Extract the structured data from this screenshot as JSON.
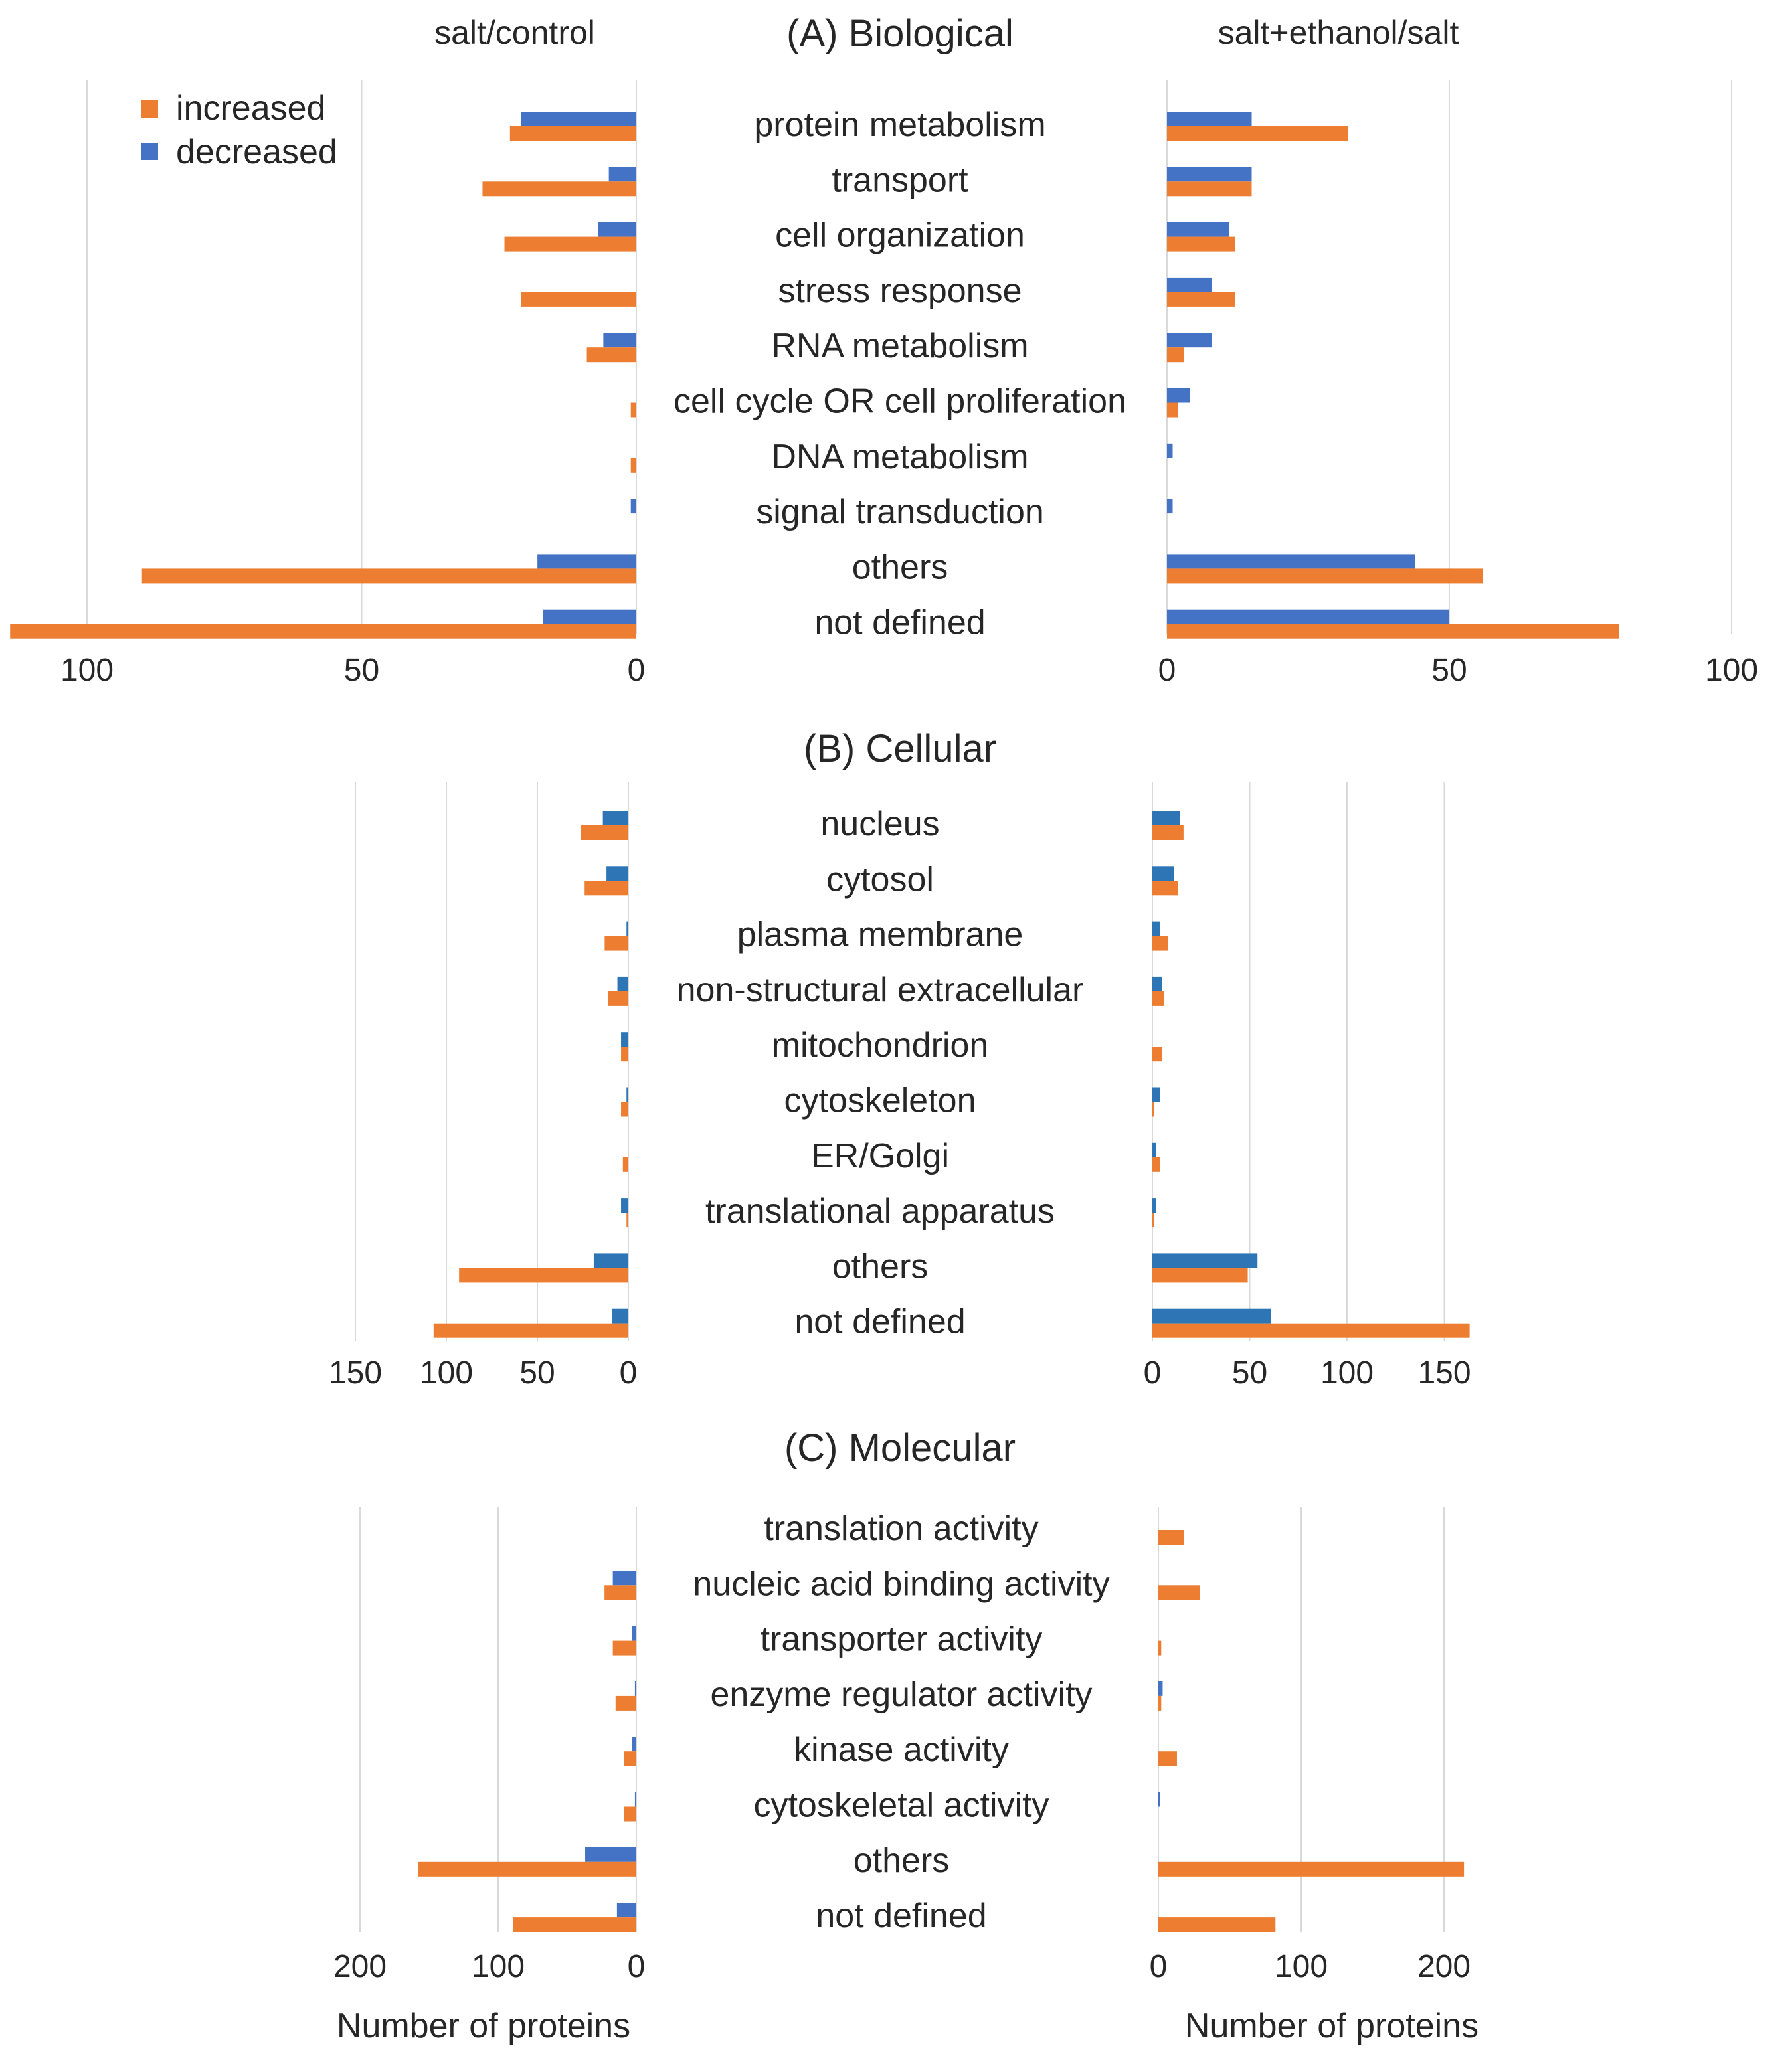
{
  "headers": {
    "left": "salt/control",
    "right": "salt+ethanol/salt"
  },
  "legend": {
    "increased": "increased",
    "decreased": "decreased"
  },
  "xlabel": "Number of proteins",
  "colors": {
    "increased": "#ED7D31",
    "decreased": "#4472C4",
    "decreased_cellular": "#2E75B6",
    "grid": "#D9D9D9",
    "text": "#262626"
  },
  "chart_data": [
    {
      "type": "bar",
      "title": "(A) Biological",
      "categories": [
        "protein metabolism",
        "transport",
        "cell organization",
        "stress response",
        "RNA metabolism",
        "cell cycle OR cell proliferation",
        "DNA metabolism",
        "signal transduction",
        "others",
        "not defined"
      ],
      "left": {
        "label": "salt/control",
        "xlim": [
          0,
          100
        ],
        "ticks": [
          "100",
          "50",
          "0"
        ],
        "series": [
          {
            "name": "increased",
            "values": [
              23,
              28,
              24,
              21,
              9,
              1,
              1,
              0,
              90,
              114
            ]
          },
          {
            "name": "decreased",
            "values": [
              21,
              5,
              7,
              0,
              6,
              0,
              0,
              1,
              18,
              17
            ]
          }
        ]
      },
      "right": {
        "label": "salt+ethanol/salt",
        "xlim": [
          0,
          100
        ],
        "ticks": [
          "0",
          "50",
          "100"
        ],
        "series": [
          {
            "name": "increased",
            "values": [
              32,
              15,
              12,
              12,
              3,
              2,
              0,
              0,
              56,
              80
            ]
          },
          {
            "name": "decreased",
            "values": [
              15,
              15,
              11,
              8,
              8,
              4,
              1,
              1,
              44,
              50
            ]
          }
        ]
      }
    },
    {
      "type": "bar",
      "title": "(B) Cellular",
      "categories": [
        "nucleus",
        "cytosol",
        "plasma membrane",
        "non-structural extracellular",
        "mitochondrion",
        "cytoskeleton",
        "ER/Golgi",
        "translational apparatus",
        "others",
        "not defined"
      ],
      "left": {
        "xlim": [
          0,
          150
        ],
        "ticks": [
          "150",
          "100",
          "50",
          "0"
        ],
        "series": [
          {
            "name": "increased",
            "values": [
              26,
              24,
              13,
              11,
              4,
              4,
              3,
              1,
              93,
              107
            ]
          },
          {
            "name": "decreased",
            "values": [
              14,
              12,
              1,
              6,
              4,
              1,
              0,
              4,
              19,
              9
            ]
          }
        ]
      },
      "right": {
        "xlim": [
          0,
          150
        ],
        "ticks": [
          "0",
          "50",
          "100",
          "150"
        ],
        "series": [
          {
            "name": "increased",
            "values": [
              16,
              13,
              8,
              6,
              5,
              1,
              4,
              1,
              49,
              163
            ]
          },
          {
            "name": "decreased",
            "values": [
              14,
              11,
              4,
              5,
              0,
              4,
              2,
              2,
              54,
              61
            ]
          }
        ]
      }
    },
    {
      "type": "bar",
      "title": "(C) Molecular",
      "categories": [
        "translation activity",
        "nucleic acid binding activity",
        "transporter activity",
        "enzyme regulator activity",
        "kinase activity",
        "cytoskeletal activity",
        "others",
        "not defined"
      ],
      "left": {
        "xlim": [
          0,
          200
        ],
        "ticks": [
          "200",
          "100",
          "0"
        ],
        "series": [
          {
            "name": "increased",
            "values": [
              0,
              23,
              17,
              15,
              9,
              9,
              158,
              89
            ]
          },
          {
            "name": "decreased",
            "values": [
              0,
              17,
              3,
              1,
              3,
              1,
              37,
              14
            ]
          }
        ]
      },
      "right": {
        "xlim": [
          0,
          200
        ],
        "ticks": [
          "0",
          "100",
          "200"
        ],
        "series": [
          {
            "name": "increased",
            "values": [
              18,
              29,
              2,
              2,
              13,
              0,
              214,
              82
            ]
          },
          {
            "name": "decreased",
            "values": [
              0,
              0,
              0,
              3,
              0,
              1,
              0,
              0
            ]
          }
        ]
      }
    }
  ]
}
